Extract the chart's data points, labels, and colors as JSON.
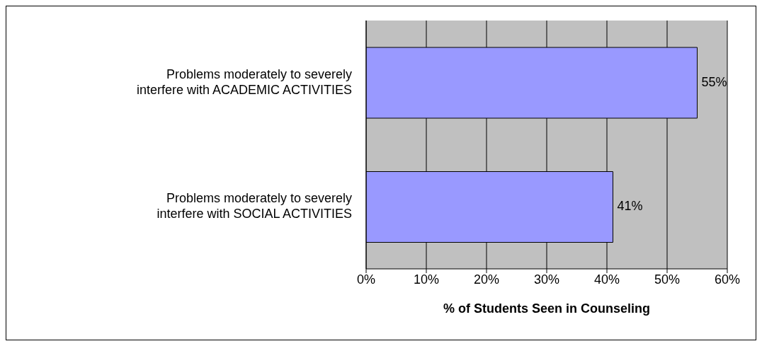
{
  "chart_data": {
    "type": "bar",
    "orientation": "horizontal",
    "categories": [
      "Problems moderately to severely interfere with ACADEMIC ACTIVITIES",
      "Problems moderately to severely interfere with SOCIAL ACTIVITIES"
    ],
    "values": [
      55,
      41
    ],
    "color": "#9999ff",
    "value_labels": [
      "55%",
      "41%"
    ],
    "xlabel": "% of Students Seen in Counseling",
    "xlim": [
      0,
      60
    ],
    "xticks": [
      {
        "value": 0,
        "label": "0%"
      },
      {
        "value": 10,
        "label": "10%"
      },
      {
        "value": 20,
        "label": "20%"
      },
      {
        "value": 30,
        "label": "30%"
      },
      {
        "value": 40,
        "label": "40%"
      },
      {
        "value": 50,
        "label": "50%"
      },
      {
        "value": 60,
        "label": "60%"
      }
    ],
    "grid": "x"
  }
}
